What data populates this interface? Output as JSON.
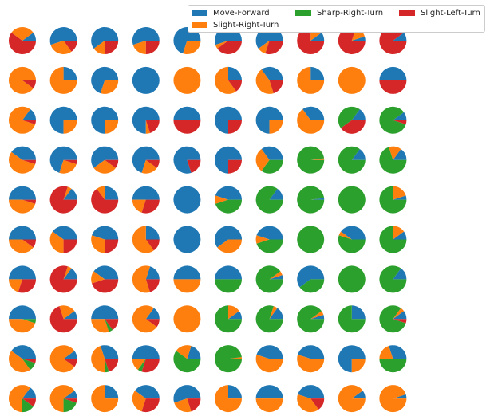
{
  "chart_data": {
    "type": "pie",
    "layout": {
      "rows": 10,
      "cols": 10
    },
    "legend": {
      "placement": "top-right",
      "entries": [
        {
          "key": "move_forward",
          "label": "Move-Forward",
          "color": "#1f77b4"
        },
        {
          "key": "slight_right",
          "label": "Slight-Right-Turn",
          "color": "#ff7f0e"
        },
        {
          "key": "sharp_right",
          "label": "Sharp-Right-Turn",
          "color": "#2ca02c"
        },
        {
          "key": "slight_left",
          "label": "Slight-Left-Turn",
          "color": "#d62728"
        }
      ]
    },
    "series_order": [
      "Move-Forward",
      "Slight-Right-Turn",
      "Sharp-Right-Turn",
      "Slight-Left-Turn"
    ],
    "pies": [
      [
        [
          0.1,
          0.3,
          0,
          0.6
        ],
        [
          0.55,
          0.3,
          0,
          0.15
        ],
        [
          0.6,
          0.15,
          0,
          0.25
        ],
        [
          0.55,
          0.2,
          0,
          0.25
        ],
        [
          0.7,
          0.3,
          0,
          0
        ],
        [
          0.55,
          0.05,
          0,
          0.4
        ],
        [
          0.6,
          0.1,
          0,
          0.3
        ],
        [
          0.1,
          0.15,
          0,
          0.75
        ],
        [
          0.05,
          0.15,
          0,
          0.8
        ],
        [
          0.1,
          0,
          0,
          0.9
        ]
      ],
      [
        [
          0,
          0.9,
          0,
          0.1
        ],
        [
          0.25,
          0.75,
          0,
          0
        ],
        [
          0.7,
          0.3,
          0,
          0
        ],
        [
          1,
          0,
          0,
          0
        ],
        [
          0,
          1,
          0,
          0
        ],
        [
          0.25,
          0.6,
          0,
          0.15
        ],
        [
          0.35,
          0.45,
          0,
          0.2
        ],
        [
          0.25,
          0.75,
          0,
          0
        ],
        [
          0,
          1,
          0,
          0
        ],
        [
          0.5,
          0,
          0,
          0.5
        ]
      ],
      [
        [
          0.15,
          0.8,
          0,
          0.05
        ],
        [
          0.75,
          0.25,
          0,
          0
        ],
        [
          0.75,
          0.25,
          0,
          0
        ],
        [
          0.75,
          0.05,
          0,
          0.2
        ],
        [
          0.5,
          0,
          0,
          0.5
        ],
        [
          0.75,
          0,
          0,
          0.25
        ],
        [
          0.75,
          0.25,
          0,
          0
        ],
        [
          0.35,
          0.65,
          0,
          0
        ],
        [
          0.15,
          0,
          0.45,
          0.4
        ],
        [
          0.1,
          0,
          0.85,
          0.05
        ]
      ],
      [
        [
          0.4,
          0.55,
          0,
          0.05
        ],
        [
          0.7,
          0.25,
          0,
          0.05
        ],
        [
          0.6,
          0.3,
          0,
          0.1
        ],
        [
          0.7,
          0.2,
          0,
          0.1
        ],
        [
          0.8,
          0,
          0,
          0.2
        ],
        [
          0.75,
          0,
          0,
          0.25
        ],
        [
          0.35,
          0.3,
          0.35,
          0
        ],
        [
          0,
          0.02,
          0.98,
          0
        ],
        [
          0.15,
          0,
          0.85,
          0
        ],
        [
          0.15,
          0.15,
          0.7,
          0
        ]
      ],
      [
        [
          0.5,
          0.45,
          0,
          0.05
        ],
        [
          0.15,
          0.05,
          0,
          0.8
        ],
        [
          0.25,
          0.1,
          0,
          0.65
        ],
        [
          0.5,
          0.2,
          0,
          0.3
        ],
        [
          1,
          0,
          0,
          0
        ],
        [
          0.45,
          0.1,
          0.45,
          0
        ],
        [
          0.15,
          0,
          0.85,
          0
        ],
        [
          0.02,
          0,
          0.98,
          0
        ],
        [
          0,
          0,
          1,
          0
        ],
        [
          0.05,
          0.2,
          0.75,
          0
        ]
      ],
      [
        [
          0.5,
          0.4,
          0,
          0.1
        ],
        [
          0.4,
          0.35,
          0,
          0.25
        ],
        [
          0.45,
          0.3,
          0,
          0.25
        ],
        [
          0.25,
          0.6,
          0,
          0.15
        ],
        [
          1,
          0,
          0,
          0
        ],
        [
          0.6,
          0.4,
          0,
          0
        ],
        [
          0.45,
          0.1,
          0.45,
          0
        ],
        [
          0,
          0,
          1,
          0
        ],
        [
          0.4,
          0.05,
          0.55,
          0
        ],
        [
          0.1,
          0.15,
          0.75,
          0
        ]
      ],
      [
        [
          0.5,
          0.2,
          0,
          0.3
        ],
        [
          0.15,
          0.05,
          0,
          0.8
        ],
        [
          0.4,
          0.15,
          0,
          0.45
        ],
        [
          0.2,
          0.6,
          0,
          0.2
        ],
        [
          0.5,
          0.5,
          0,
          0
        ],
        [
          0.5,
          0,
          0.5,
          0
        ],
        [
          0.05,
          0.05,
          0.9,
          0
        ],
        [
          0.6,
          0,
          0.4,
          0
        ],
        [
          0,
          0,
          1,
          0
        ],
        [
          0.15,
          0,
          0.85,
          0
        ]
      ],
      [
        [
          0.5,
          0.45,
          0.05,
          0
        ],
        [
          0.1,
          0.2,
          0,
          0.7
        ],
        [
          0.5,
          0.3,
          0.05,
          0.15
        ],
        [
          0.15,
          0.75,
          0,
          0.1
        ],
        [
          0,
          1,
          0,
          0
        ],
        [
          0.1,
          0.15,
          0.75,
          0
        ],
        [
          0.15,
          0.05,
          0.8,
          0
        ],
        [
          0.05,
          0.05,
          0.9,
          0
        ],
        [
          0.25,
          0,
          0.75,
          0
        ],
        [
          0.1,
          0.05,
          0.8,
          0.05
        ]
      ],
      [
        [
          0.4,
          0.45,
          0.1,
          0.05
        ],
        [
          0.1,
          0.8,
          0,
          0.1
        ],
        [
          0.3,
          0.45,
          0.05,
          0.2
        ],
        [
          0.5,
          0.15,
          0.05,
          0.3
        ],
        [
          0.2,
          0.2,
          0.6,
          0
        ],
        [
          0,
          0.02,
          0.98,
          0
        ],
        [
          0.45,
          0.55,
          0,
          0
        ],
        [
          0.45,
          0.55,
          0,
          0
        ],
        [
          0.75,
          0.25,
          0,
          0
        ],
        [
          0.3,
          0.2,
          0.5,
          0
        ]
      ],
      [
        [
          0.15,
          0.6,
          0.15,
          0.1
        ],
        [
          0.1,
          0.65,
          0.2,
          0.05
        ],
        [
          0.25,
          0.75,
          0,
          0
        ],
        [
          0.4,
          0.3,
          0,
          0.3
        ],
        [
          0.55,
          0.25,
          0,
          0.2
        ],
        [
          0.25,
          0.75,
          0,
          0
        ],
        [
          0.5,
          0.5,
          0,
          0
        ],
        [
          0.45,
          0.4,
          0,
          0.15
        ],
        [
          0.1,
          0.9,
          0,
          0
        ],
        [
          0.05,
          0.95,
          0,
          0
        ]
      ]
    ]
  }
}
